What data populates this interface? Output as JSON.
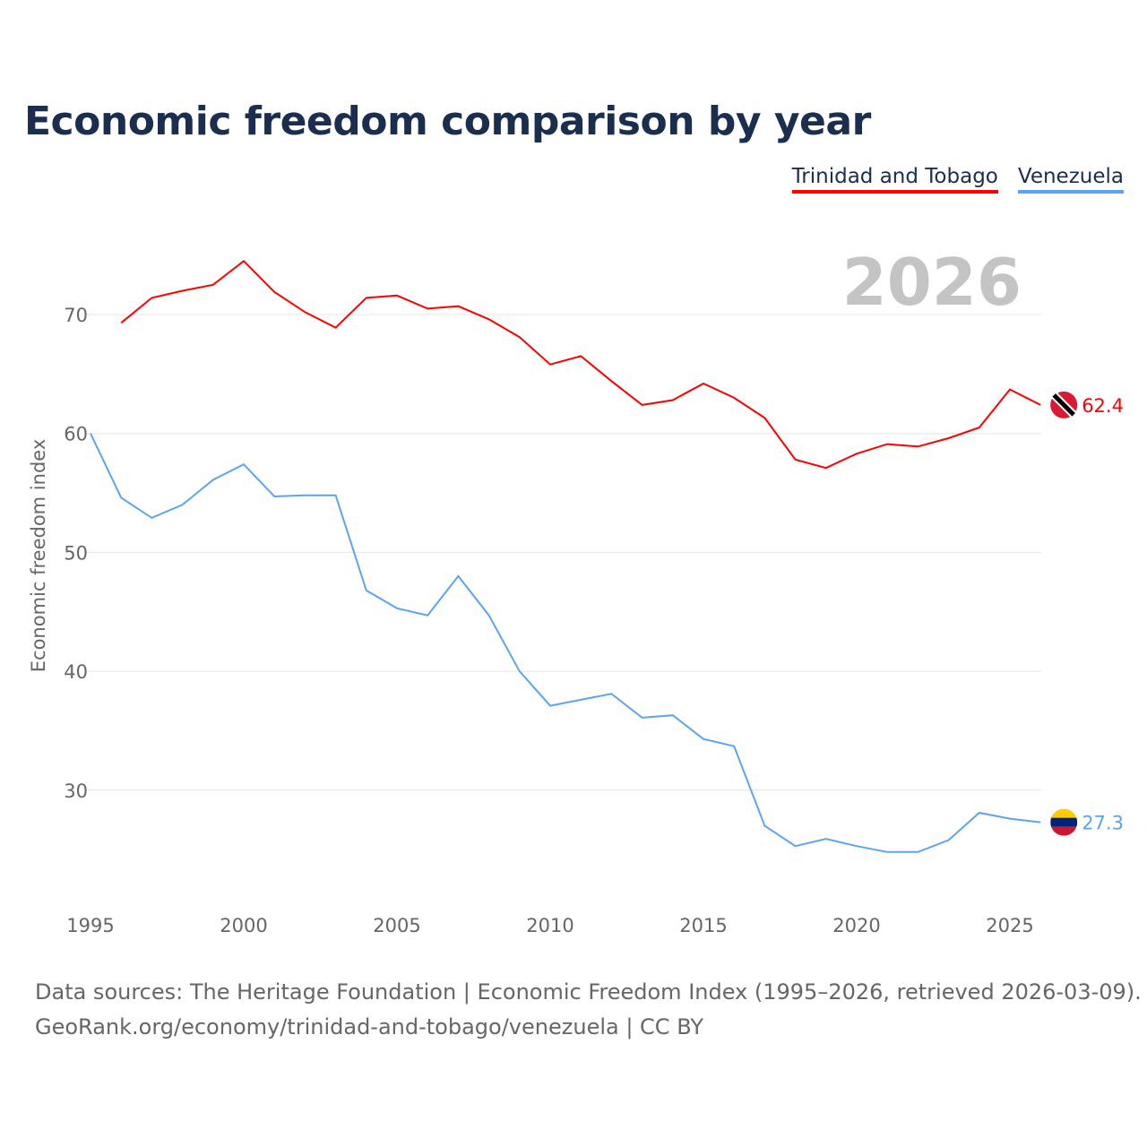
{
  "chart_data": {
    "type": "line",
    "title": "Economic freedom comparison by year",
    "ylabel": "Economic freedom index",
    "xlabel": "",
    "year_label": "2026",
    "xlim": [
      1995,
      2026
    ],
    "ylim": [
      20,
      77
    ],
    "xticks": [
      1995,
      2000,
      2005,
      2010,
      2015,
      2020,
      2025
    ],
    "yticks": [
      30,
      40,
      50,
      60,
      70
    ],
    "grid": true,
    "legend_position": "top-right",
    "series": [
      {
        "name": "Trinidad and Tobago",
        "color": "#ff0000",
        "end_label": "62.4",
        "x": [
          1996,
          1997,
          1998,
          1999,
          2000,
          2001,
          2002,
          2003,
          2004,
          2005,
          2006,
          2007,
          2008,
          2009,
          2010,
          2011,
          2012,
          2013,
          2014,
          2015,
          2016,
          2017,
          2018,
          2019,
          2020,
          2021,
          2022,
          2023,
          2024,
          2025,
          2026
        ],
        "values": [
          69.3,
          71.4,
          72.0,
          72.5,
          74.5,
          71.9,
          70.2,
          68.9,
          71.4,
          71.6,
          70.5,
          70.7,
          69.6,
          68.1,
          65.8,
          66.5,
          64.4,
          62.4,
          62.8,
          64.2,
          63.0,
          61.3,
          57.8,
          57.1,
          58.3,
          59.1,
          58.9,
          59.6,
          60.5,
          63.7,
          62.4
        ]
      },
      {
        "name": "Venezuela",
        "color": "#5ba4ef",
        "end_label": "27.3",
        "x": [
          1995,
          1996,
          1997,
          1998,
          1999,
          2000,
          2001,
          2002,
          2003,
          2004,
          2005,
          2006,
          2007,
          2008,
          2009,
          2010,
          2011,
          2012,
          2013,
          2014,
          2015,
          2016,
          2017,
          2018,
          2019,
          2020,
          2021,
          2022,
          2023,
          2024,
          2025,
          2026
        ],
        "values": [
          60.0,
          54.6,
          52.9,
          54.0,
          56.1,
          57.4,
          54.7,
          54.8,
          54.8,
          46.8,
          45.3,
          44.7,
          48.0,
          44.7,
          40.0,
          37.1,
          37.6,
          38.1,
          36.1,
          36.3,
          34.3,
          33.7,
          27.0,
          25.3,
          25.9,
          25.3,
          24.8,
          24.8,
          25.8,
          28.1,
          27.6,
          27.3
        ]
      }
    ]
  },
  "footer": {
    "line1": "Data sources: The Heritage Foundation | Economic Freedom Index (1995–2026, retrieved 2026-03-09).",
    "line2": "GeoRank.org/economy/trinidad-and-tobago/venezuela | CC BY"
  }
}
